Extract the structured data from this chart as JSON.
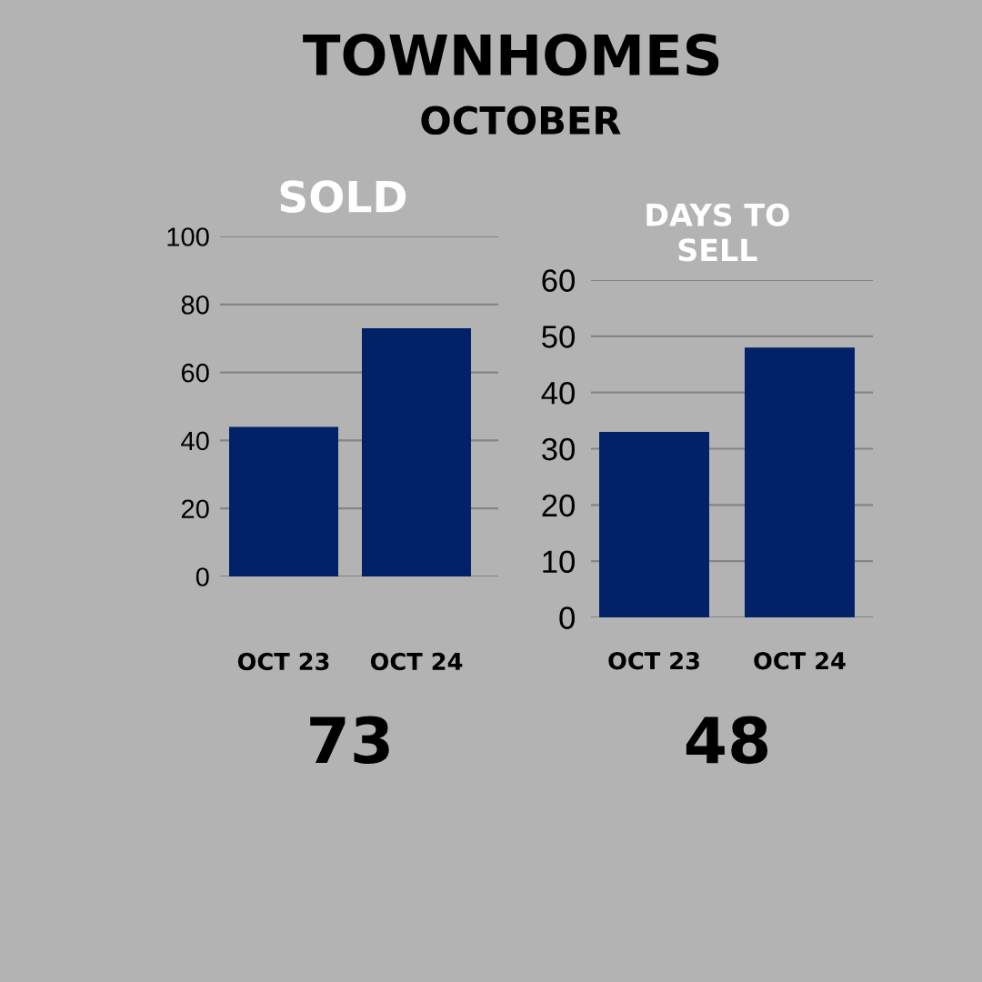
{
  "chart_data": [
    {
      "type": "other",
      "title": "TOWNHOMES",
      "subtitle": "OCTOBER"
    },
    {
      "type": "bar",
      "title": "SOLD",
      "categories": [
        "OCT 23",
        "OCT 24"
      ],
      "values": [
        44,
        73
      ],
      "color": "#012169",
      "ylim": [
        0,
        100
      ],
      "yticks": [
        0,
        20,
        40,
        60,
        80,
        100
      ],
      "grid": "y",
      "annotations": [
        "73"
      ]
    },
    {
      "type": "bar",
      "title": "DAYS TO SELL",
      "categories": [
        "OCT 23",
        "OCT 24"
      ],
      "values": [
        33,
        48
      ],
      "color": "#012169",
      "ylim": [
        0,
        60
      ],
      "yticks": [
        0,
        10,
        20,
        30,
        40,
        50,
        60
      ],
      "grid": "y",
      "annotations": [
        "48"
      ]
    }
  ]
}
